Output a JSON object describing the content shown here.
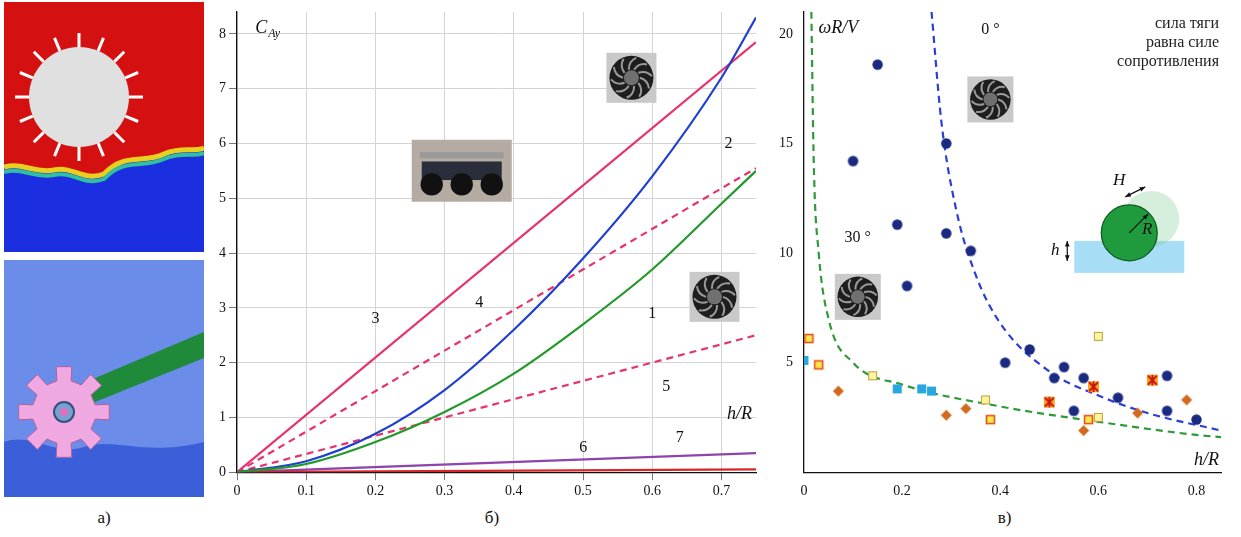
{
  "image_panel": {
    "panel_label": "а)"
  },
  "chart_data": [
    {
      "panel_label": "б)",
      "type": "line",
      "x_label": "h/R",
      "y_label": {
        "text": "C",
        "subscript": "Ay"
      },
      "xlim": [
        0,
        0.75
      ],
      "xticks": [
        0,
        0.1,
        0.2,
        0.3,
        0.4,
        0.5,
        0.6,
        0.7
      ],
      "ylim": [
        0,
        8.4
      ],
      "yticks": [
        0,
        1,
        2,
        3,
        4,
        5,
        6,
        7,
        8
      ],
      "grid": true,
      "series": [
        {
          "name": "1",
          "color": "#22992a",
          "line_style": "solid",
          "x": [
            0,
            0.1,
            0.2,
            0.3,
            0.4,
            0.5,
            0.6,
            0.7,
            0.75
          ],
          "values": [
            0,
            0.15,
            0.55,
            1.1,
            1.8,
            2.7,
            3.7,
            4.9,
            5.5
          ]
        },
        {
          "name": "2",
          "color": "#1f3fd0",
          "line_style": "solid",
          "x": [
            0,
            0.1,
            0.2,
            0.3,
            0.4,
            0.5,
            0.6,
            0.7,
            0.75
          ],
          "values": [
            0,
            0.2,
            0.7,
            1.5,
            2.6,
            3.9,
            5.4,
            7.2,
            8.3
          ]
        },
        {
          "name": "3",
          "color": "#e6336e",
          "line_style": "solid",
          "x": [
            0,
            0.75
          ],
          "values": [
            0,
            7.85
          ]
        },
        {
          "name": "4",
          "color": "#e6336e",
          "line_style": "dashed",
          "x": [
            0,
            0.75
          ],
          "values": [
            0,
            5.55
          ]
        },
        {
          "name": "5",
          "color": "#e6336e",
          "line_style": "dashed",
          "x": [
            0,
            0.75
          ],
          "values": [
            0,
            2.5
          ]
        },
        {
          "name": "6",
          "color": "#d62728",
          "line_style": "solid",
          "x": [
            0,
            0.75
          ],
          "values": [
            0,
            0.05
          ]
        },
        {
          "name": "7",
          "color": "#8e44ad",
          "line_style": "solid",
          "x": [
            0,
            0.75
          ],
          "values": [
            0,
            0.35
          ]
        }
      ]
    },
    {
      "panel_label": "в)",
      "type": "scatter",
      "x_label": "h/R",
      "y_label": "ωR/V",
      "annotation": [
        "сила тяги",
        "равна силе",
        "сопротивления"
      ],
      "inset_labels": [
        "H",
        "R",
        "h"
      ],
      "xlim": [
        0,
        0.85
      ],
      "xticks": [
        0,
        0.2,
        0.4,
        0.6,
        0.8
      ],
      "ylim": [
        0,
        21
      ],
      "yticks": [
        5,
        10,
        15,
        20
      ],
      "grid": false,
      "series": [
        {
          "name": "0 °",
          "type": "line",
          "color": "#2a3fd6",
          "line_style": "dashed",
          "x": [
            0.26,
            0.28,
            0.31,
            0.35,
            0.4,
            0.5,
            0.6,
            0.7,
            0.85
          ],
          "values": [
            21,
            16,
            12,
            9,
            6.8,
            4.6,
            3.5,
            2.7,
            1.9
          ]
        },
        {
          "name": "30 °",
          "type": "line",
          "color": "#2e9a3a",
          "line_style": "dashed",
          "x": [
            0.015,
            0.02,
            0.03,
            0.05,
            0.1,
            0.2,
            0.4,
            0.6,
            0.8,
            0.85
          ],
          "values": [
            21,
            14,
            10,
            7,
            5,
            4,
            3,
            2.3,
            1.7,
            1.6
          ]
        },
        {
          "marker": "circle",
          "color": "#1a2a80",
          "x": [
            0.15,
            0.1,
            0.19,
            0.21,
            0.29,
            0.29,
            0.34,
            0.41,
            0.46,
            0.51,
            0.53,
            0.57,
            0.55,
            0.64,
            0.74,
            0.74,
            0.8
          ],
          "values": [
            18.6,
            14.2,
            11.3,
            8.5,
            15.0,
            10.9,
            10.1,
            5.0,
            5.6,
            4.3,
            4.8,
            4.3,
            2.8,
            3.4,
            4.4,
            2.8,
            2.4
          ]
        },
        {
          "marker": "framed_square",
          "color": "#fde74c",
          "x": [
            0.01,
            0.03,
            0.38,
            0.58
          ],
          "values": [
            6.1,
            4.9,
            2.4,
            2.4
          ]
        },
        {
          "marker": "pale_square",
          "color": "#fff3a0",
          "x": [
            0.14,
            0.37,
            0.6,
            0.6
          ],
          "values": [
            4.4,
            3.3,
            6.2,
            2.5
          ]
        },
        {
          "marker": "square",
          "color": "#29a8e0",
          "x": [
            0.0,
            0.19,
            0.24,
            0.26
          ],
          "values": [
            5.1,
            3.8,
            3.8,
            3.7
          ]
        },
        {
          "marker": "diamond",
          "color": "#d2691e",
          "x": [
            0.07,
            0.29,
            0.33,
            0.57,
            0.68,
            0.78
          ],
          "values": [
            3.7,
            2.6,
            2.9,
            1.9,
            2.7,
            3.3
          ]
        },
        {
          "marker": "crossed_square",
          "color": "#f5a623",
          "x": [
            0.5,
            0.59,
            0.71
          ],
          "values": [
            3.2,
            3.9,
            4.2
          ]
        }
      ]
    }
  ]
}
